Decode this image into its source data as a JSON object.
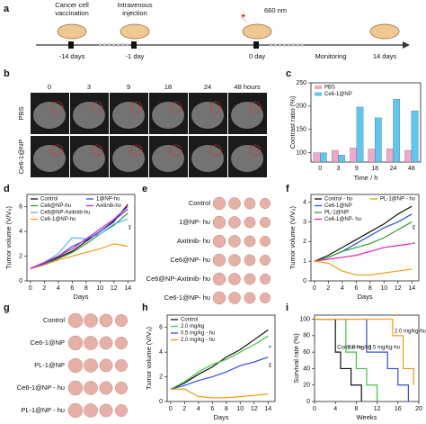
{
  "panel_labels": [
    "a",
    "b",
    "c",
    "d",
    "e",
    "f",
    "g",
    "h",
    "i"
  ],
  "timeline": {
    "events": [
      {
        "lines": [
          "Cancer cell",
          "vaccination"
        ],
        "time": "-14 days"
      },
      {
        "lines": [
          "Intravenous",
          "injection"
        ],
        "time": "-1 day"
      },
      {
        "lines": [
          "660 nm"
        ],
        "time": "0 day"
      }
    ],
    "monitoring": "Monitoring",
    "end": "14 days"
  },
  "imaging": {
    "columns": [
      "0",
      "3",
      "9",
      "18",
      "24",
      "48 hours"
    ],
    "rows": [
      "PBS",
      "Ce6-1@NP"
    ]
  },
  "photos_e": {
    "rows": [
      "Control",
      "1@NP- hυ",
      "Axitinib- hυ",
      "Ce6@NP- hυ",
      "Ce6@NP-Axitinib- hυ",
      "Ce6-1@NP- hυ"
    ]
  },
  "photos_g": {
    "rows": [
      "Control",
      "Ce6-1@NP",
      "PL-1@NP",
      "Ce6-1@NP - hυ",
      "PL-1@NP - hυ"
    ]
  },
  "chart_data": [
    {
      "type": "bar",
      "categories": [
        "0",
        "3",
        "9",
        "18",
        "24",
        "48"
      ],
      "series": [
        {
          "name": "PBS",
          "color": "#f4a6cc",
          "values": [
            100,
            105,
            110,
            108,
            108,
            105
          ]
        },
        {
          "name": "Ce6-1@NP",
          "color": "#5cc8ef",
          "values": [
            100,
            95,
            198,
            175,
            215,
            190
          ]
        }
      ],
      "ylim": [
        80,
        250
      ],
      "yticks": [
        100,
        150,
        200,
        250
      ],
      "y_label": "Contrast ratio (%)",
      "x_label": "Time / h"
    },
    {
      "type": "line",
      "x": [
        0,
        2,
        4,
        6,
        8,
        10,
        12,
        14
      ],
      "xlim": [
        -0.5,
        15
      ],
      "xticks": [
        0,
        2,
        4,
        6,
        8,
        10,
        12,
        14
      ],
      "ylim": [
        0,
        7
      ],
      "yticks": [
        0,
        2,
        4,
        6
      ],
      "y_label": "Tumor volume (V/V₀)",
      "x_label": "Days",
      "series": [
        {
          "name": "Control",
          "color": "#111111",
          "values": [
            1,
            1.4,
            1.9,
            2.4,
            3.2,
            4,
            4.8,
            6.2
          ]
        },
        {
          "name": "Ce6@NP-hυ",
          "color": "#2ca02c",
          "values": [
            1,
            1.3,
            1.8,
            2.3,
            3.0,
            3.8,
            4.5,
            5.5
          ]
        },
        {
          "name": "Ce6@NP-Axitinib-hυ",
          "color": "#58b4e8",
          "values": [
            1,
            1.5,
            2.2,
            3.5,
            3.4,
            3.8,
            4.6,
            5.0
          ]
        },
        {
          "name": "Ce6-1@NP-hυ",
          "color": "#f39c12",
          "values": [
            1,
            1.3,
            1.7,
            2.0,
            2.3,
            2.6,
            3.0,
            2.8
          ]
        },
        {
          "name": "1@NP-hυ",
          "color": "#2f4fe0",
          "values": [
            1,
            1.4,
            2.0,
            2.8,
            3.3,
            4.0,
            4.9,
            5.8
          ]
        },
        {
          "name": "Axitinib-hυ",
          "color": "#e020c0",
          "values": [
            1,
            1.5,
            2.0,
            2.6,
            3.4,
            4.2,
            5.0,
            6.0
          ]
        }
      ],
      "annotations": [
        "**"
      ]
    },
    {
      "type": "line",
      "x": [
        0,
        2,
        4,
        6,
        8,
        10,
        12,
        14
      ],
      "xlim": [
        -0.5,
        15
      ],
      "xticks": [
        0,
        2,
        4,
        6,
        8,
        10,
        12,
        14
      ],
      "ylim": [
        0,
        4.4
      ],
      "yticks": [
        0,
        1,
        2,
        3,
        4
      ],
      "y_label": "Tumor volume (V/V₀)",
      "x_label": "Days",
      "series": [
        {
          "name": "Control - hυ",
          "color": "#111111",
          "values": [
            1,
            1.3,
            1.7,
            2.1,
            2.5,
            2.9,
            3.4,
            3.8
          ]
        },
        {
          "name": "Ce6-1@NP",
          "color": "#2f4fe0",
          "values": [
            1,
            1.2,
            1.5,
            1.9,
            2.3,
            2.7,
            3.0,
            3.4
          ]
        },
        {
          "name": "PL-1@NP",
          "color": "#2ca02c",
          "values": [
            1,
            1.2,
            1.5,
            1.7,
            1.9,
            2.2,
            2.6,
            3.0
          ]
        },
        {
          "name": "Ce6-1@NP- hυ",
          "color": "#e020c0",
          "values": [
            1,
            1.1,
            1.2,
            1.3,
            1.5,
            1.7,
            1.8,
            1.9
          ]
        },
        {
          "name": "PL-1@NP - hυ",
          "color": "#f39c12",
          "values": [
            1,
            0.9,
            0.5,
            0.3,
            0.3,
            0.4,
            0.5,
            0.6
          ]
        }
      ],
      "annotations": [
        "**",
        "*"
      ]
    },
    {
      "type": "line",
      "x": [
        0,
        2,
        4,
        6,
        8,
        10,
        12,
        14
      ],
      "xlim": [
        -0.5,
        15
      ],
      "xticks": [
        0,
        2,
        4,
        6,
        8,
        10,
        12,
        14
      ],
      "ylim": [
        0,
        7
      ],
      "yticks": [
        0,
        2,
        4,
        6
      ],
      "y_label": "Tumor volume (V/V₀)",
      "x_label": "Days",
      "series": [
        {
          "name": "Control",
          "color": "#111111",
          "values": [
            1,
            1.5,
            2.2,
            2.8,
            3.6,
            4.2,
            5.0,
            5.8
          ]
        },
        {
          "name": "2.0 mg/kg",
          "color": "#3cc83c",
          "values": [
            1,
            1.6,
            2.4,
            3.0,
            3.4,
            4.0,
            4.6,
            5.3
          ]
        },
        {
          "name": "0.5 mg/kg - hυ",
          "color": "#2f4fe0",
          "values": [
            1,
            1.3,
            1.7,
            2.0,
            2.4,
            2.9,
            3.2,
            3.6
          ]
        },
        {
          "name": "2.0 mg/kg - hυ",
          "color": "#f39c12",
          "values": [
            1,
            1.0,
            0.4,
            0.3,
            0.3,
            0.4,
            0.5,
            0.6
          ]
        }
      ],
      "annotations": [
        "*",
        "**"
      ]
    },
    {
      "type": "line",
      "step": true,
      "legend": "inline",
      "xlim": [
        0,
        20
      ],
      "xticks": [
        0,
        4,
        8,
        12,
        16,
        20
      ],
      "ylim": [
        0,
        105
      ],
      "yticks": [
        0,
        20,
        40,
        60,
        80,
        100
      ],
      "y_label": "Survival rate (%)",
      "x_label": "Weeks",
      "series": [
        {
          "name": "Control-hυ",
          "color": "#111111",
          "x": [
            0,
            4,
            5,
            7,
            9
          ],
          "values": [
            100,
            60,
            40,
            20,
            0
          ]
        },
        {
          "name": "2.0 mg/kg",
          "color": "#3cc83c",
          "x": [
            0,
            6,
            8,
            10,
            12
          ],
          "values": [
            100,
            60,
            40,
            20,
            0
          ]
        },
        {
          "name": "0.5 mg/kg-hυ",
          "color": "#2f4fe0",
          "x": [
            0,
            10,
            14,
            16,
            18
          ],
          "values": [
            100,
            60,
            40,
            20,
            0
          ]
        },
        {
          "name": "2.0 mg/kg-hυ",
          "color": "#f39c12",
          "x": [
            0,
            15,
            17,
            19
          ],
          "values": [
            100,
            80,
            40,
            20
          ]
        }
      ]
    }
  ]
}
